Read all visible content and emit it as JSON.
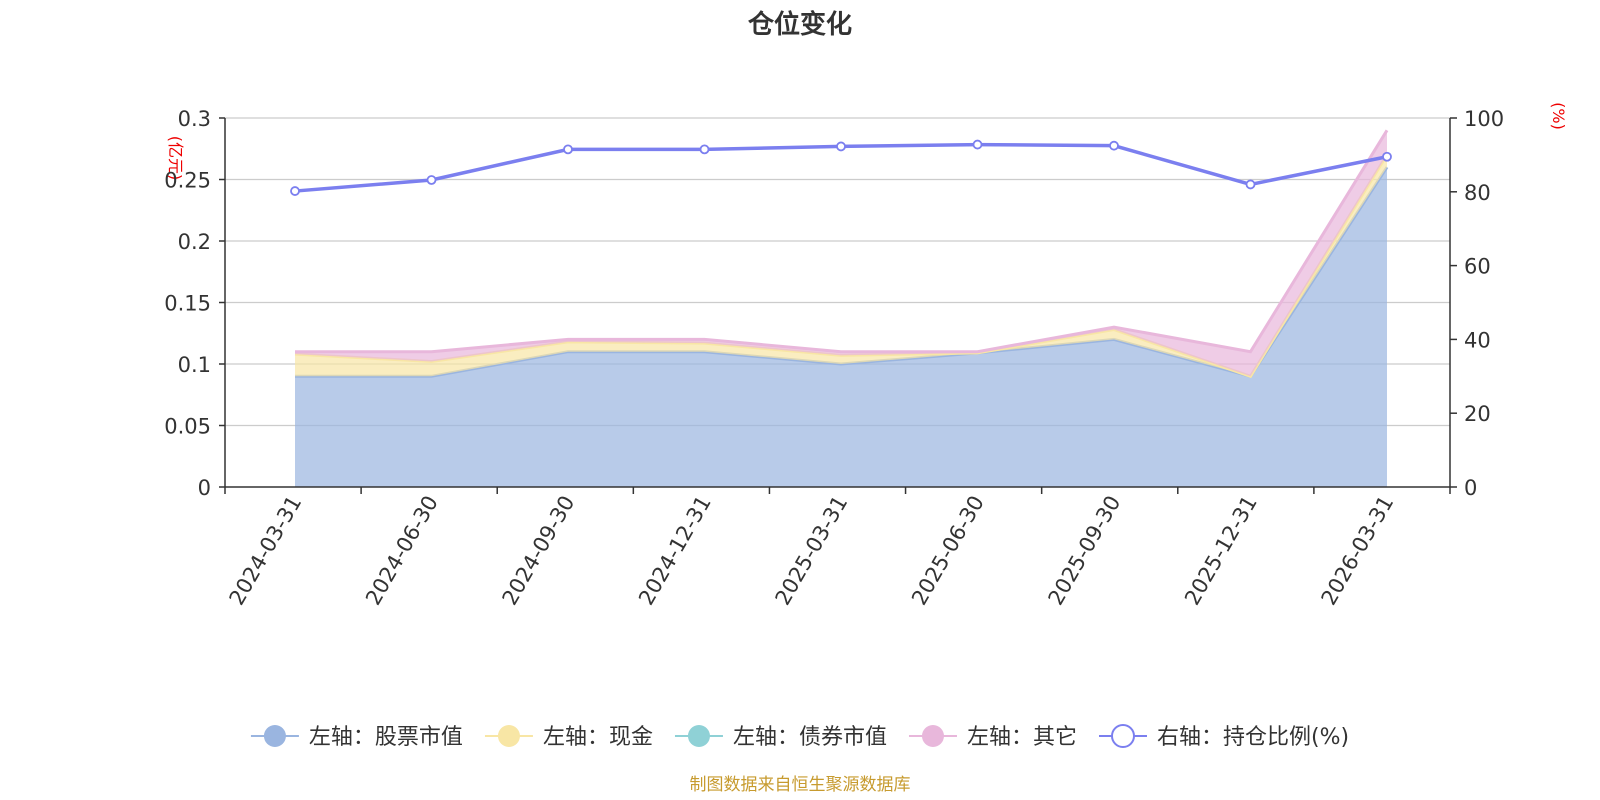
{
  "chart_data": {
    "type": "area",
    "title": "仓位变化",
    "categories": [
      "2024-03-31",
      "2024-06-30",
      "2024-09-30",
      "2024-12-31",
      "2025-03-31",
      "2025-06-30",
      "2025-09-30",
      "2025-12-31",
      "2026-03-31"
    ],
    "left_axis": {
      "unit": "(亿元)",
      "ylim": [
        0,
        0.3
      ],
      "ticks": [
        "0",
        "0.05",
        "0.1",
        "0.15",
        "0.2",
        "0.25",
        "0.3"
      ]
    },
    "right_axis": {
      "unit": "(%)",
      "ylim": [
        0,
        100
      ],
      "ticks": [
        "0",
        "20",
        "40",
        "60",
        "80",
        "100"
      ]
    },
    "grid": true,
    "legend_position": "bottom",
    "series": [
      {
        "name": "左轴：股票市值",
        "axis": "left",
        "kind": "stacked-area",
        "color": "#9ab5e0",
        "values": [
          0.09,
          0.09,
          0.11,
          0.11,
          0.1,
          0.109,
          0.12,
          0.09,
          0.26
        ]
      },
      {
        "name": "左轴：现金",
        "axis": "left",
        "kind": "stacked-area",
        "color": "#f8e6a5",
        "values": [
          0.018,
          0.012,
          0.008,
          0.007,
          0.007,
          0.0,
          0.008,
          0.0,
          0.01
        ]
      },
      {
        "name": "左轴：债券市值",
        "axis": "left",
        "kind": "stacked-area",
        "color": "#8fd1d6",
        "values": [
          0,
          0,
          0,
          0,
          0,
          0,
          0,
          0,
          0
        ]
      },
      {
        "name": "左轴：其它",
        "axis": "left",
        "kind": "stacked-area",
        "color": "#e8b7db",
        "values": [
          0.002,
          0.008,
          0.002,
          0.003,
          0.003,
          0.001,
          0.002,
          0.02,
          0.02
        ]
      },
      {
        "name": "右轴：持仓比例(%)",
        "axis": "right",
        "kind": "line",
        "color": "#7b7fef",
        "values": [
          80.2,
          83.2,
          91.5,
          91.5,
          92.3,
          92.8,
          92.5,
          82.0,
          89.5
        ]
      }
    ],
    "source_note": "制图数据来自恒生聚源数据库"
  }
}
